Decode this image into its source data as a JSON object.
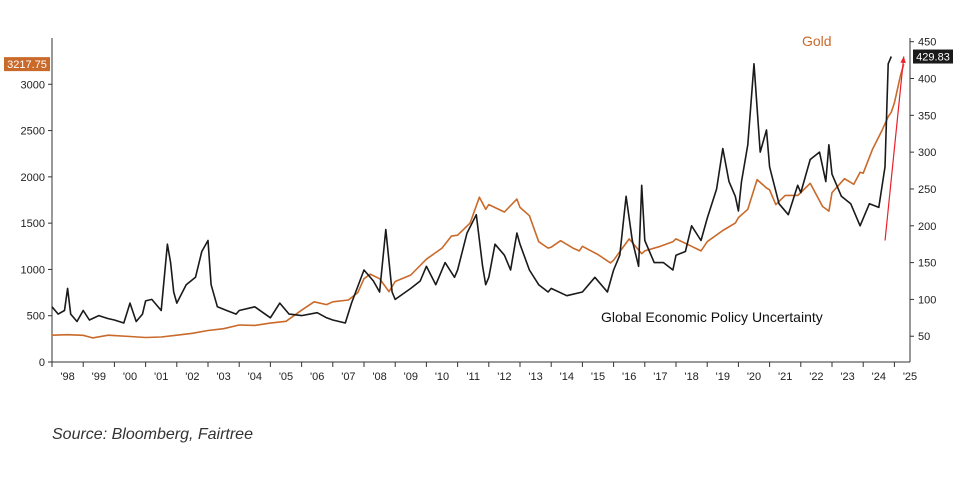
{
  "source": "Source: Bloomberg, Fairtree",
  "chart_data": {
    "type": "line",
    "title": "",
    "x_tick_labels": [
      "'98",
      "'99",
      "'00",
      "'01",
      "'02",
      "'03",
      "'04",
      "'05",
      "'06",
      "'07",
      "'08",
      "'09",
      "'10",
      "'11",
      "'12",
      "'13",
      "'14",
      "'15",
      "'16",
      "'17",
      "'18",
      "'19",
      "'20",
      "'21",
      "'22",
      "'23",
      "'24",
      "'25"
    ],
    "x_range": [
      1998,
      2025.5
    ],
    "left_axis": {
      "ticks": [
        0,
        500,
        1000,
        1500,
        2000,
        2500,
        3000
      ],
      "ylim": [
        0,
        3500
      ]
    },
    "right_axis": {
      "ticks": [
        50,
        100,
        150,
        200,
        250,
        300,
        350,
        400,
        450
      ],
      "ylim": [
        15,
        455
      ]
    },
    "grid": false,
    "colors": {
      "gold": "#C96A2B",
      "epu": "#1a1a1a",
      "arrow": "#E8202A",
      "left_badge": "#C96A2B",
      "right_badge": "#1a1a1a"
    },
    "series": [
      {
        "name": "Gold",
        "axis": "left",
        "last_value_label": "3217.75",
        "points": [
          [
            1998.0,
            290
          ],
          [
            1998.5,
            295
          ],
          [
            1999.0,
            288
          ],
          [
            1999.3,
            260
          ],
          [
            1999.8,
            290
          ],
          [
            2000.0,
            285
          ],
          [
            2000.5,
            275
          ],
          [
            2001.0,
            265
          ],
          [
            2001.5,
            270
          ],
          [
            2002.0,
            290
          ],
          [
            2002.5,
            310
          ],
          [
            2003.0,
            340
          ],
          [
            2003.5,
            360
          ],
          [
            2004.0,
            400
          ],
          [
            2004.5,
            395
          ],
          [
            2005.0,
            420
          ],
          [
            2005.5,
            440
          ],
          [
            2006.0,
            560
          ],
          [
            2006.4,
            650
          ],
          [
            2006.8,
            620
          ],
          [
            2007.0,
            650
          ],
          [
            2007.5,
            670
          ],
          [
            2007.8,
            750
          ],
          [
            2008.0,
            900
          ],
          [
            2008.2,
            950
          ],
          [
            2008.5,
            900
          ],
          [
            2008.8,
            760
          ],
          [
            2009.0,
            870
          ],
          [
            2009.5,
            940
          ],
          [
            2010.0,
            1110
          ],
          [
            2010.5,
            1230
          ],
          [
            2010.8,
            1360
          ],
          [
            2011.0,
            1370
          ],
          [
            2011.4,
            1500
          ],
          [
            2011.7,
            1780
          ],
          [
            2011.9,
            1650
          ],
          [
            2012.0,
            1700
          ],
          [
            2012.5,
            1620
          ],
          [
            2012.9,
            1760
          ],
          [
            2013.0,
            1670
          ],
          [
            2013.3,
            1580
          ],
          [
            2013.6,
            1300
          ],
          [
            2013.9,
            1230
          ],
          [
            2014.0,
            1240
          ],
          [
            2014.3,
            1310
          ],
          [
            2014.7,
            1230
          ],
          [
            2014.9,
            1200
          ],
          [
            2015.0,
            1250
          ],
          [
            2015.5,
            1160
          ],
          [
            2015.9,
            1070
          ],
          [
            2016.0,
            1100
          ],
          [
            2016.5,
            1330
          ],
          [
            2016.9,
            1170
          ],
          [
            2017.0,
            1200
          ],
          [
            2017.5,
            1250
          ],
          [
            2017.9,
            1300
          ],
          [
            2018.0,
            1330
          ],
          [
            2018.5,
            1250
          ],
          [
            2018.8,
            1200
          ],
          [
            2019.0,
            1300
          ],
          [
            2019.5,
            1420
          ],
          [
            2019.9,
            1500
          ],
          [
            2020.0,
            1560
          ],
          [
            2020.3,
            1650
          ],
          [
            2020.6,
            1970
          ],
          [
            2020.9,
            1880
          ],
          [
            2021.0,
            1860
          ],
          [
            2021.2,
            1700
          ],
          [
            2021.5,
            1800
          ],
          [
            2021.9,
            1800
          ],
          [
            2022.0,
            1830
          ],
          [
            2022.3,
            1930
          ],
          [
            2022.7,
            1680
          ],
          [
            2022.9,
            1630
          ],
          [
            2023.0,
            1830
          ],
          [
            2023.4,
            1980
          ],
          [
            2023.7,
            1920
          ],
          [
            2023.9,
            2050
          ],
          [
            2024.0,
            2040
          ],
          [
            2024.3,
            2300
          ],
          [
            2024.6,
            2500
          ],
          [
            2024.8,
            2650
          ],
          [
            2024.9,
            2700
          ],
          [
            2025.0,
            2800
          ],
          [
            2025.1,
            2950
          ],
          [
            2025.2,
            3100
          ],
          [
            2025.3,
            3217.75
          ]
        ]
      },
      {
        "name": "Global Economic Policy Uncertainty",
        "axis": "right",
        "last_value_label": "429.83",
        "points": [
          [
            1998.0,
            90
          ],
          [
            1998.2,
            80
          ],
          [
            1998.4,
            85
          ],
          [
            1998.5,
            115
          ],
          [
            1998.6,
            80
          ],
          [
            1998.8,
            70
          ],
          [
            1999.0,
            85
          ],
          [
            1999.2,
            72
          ],
          [
            1999.5,
            78
          ],
          [
            1999.8,
            74
          ],
          [
            2000.0,
            72
          ],
          [
            2000.3,
            68
          ],
          [
            2000.5,
            95
          ],
          [
            2000.7,
            70
          ],
          [
            2000.9,
            80
          ],
          [
            2001.0,
            98
          ],
          [
            2001.2,
            100
          ],
          [
            2001.5,
            85
          ],
          [
            2001.7,
            175
          ],
          [
            2001.8,
            150
          ],
          [
            2001.9,
            110
          ],
          [
            2002.0,
            95
          ],
          [
            2002.3,
            120
          ],
          [
            2002.6,
            130
          ],
          [
            2002.8,
            165
          ],
          [
            2003.0,
            180
          ],
          [
            2003.1,
            120
          ],
          [
            2003.3,
            90
          ],
          [
            2003.6,
            85
          ],
          [
            2003.9,
            80
          ],
          [
            2004.0,
            85
          ],
          [
            2004.5,
            90
          ],
          [
            2005.0,
            75
          ],
          [
            2005.3,
            95
          ],
          [
            2005.6,
            80
          ],
          [
            2006.0,
            78
          ],
          [
            2006.5,
            82
          ],
          [
            2006.8,
            75
          ],
          [
            2007.0,
            72
          ],
          [
            2007.4,
            68
          ],
          [
            2007.6,
            95
          ],
          [
            2008.0,
            140
          ],
          [
            2008.3,
            125
          ],
          [
            2008.5,
            110
          ],
          [
            2008.7,
            195
          ],
          [
            2008.9,
            110
          ],
          [
            2009.0,
            100
          ],
          [
            2009.5,
            115
          ],
          [
            2009.8,
            125
          ],
          [
            2010.0,
            145
          ],
          [
            2010.3,
            120
          ],
          [
            2010.6,
            150
          ],
          [
            2010.9,
            130
          ],
          [
            2011.0,
            140
          ],
          [
            2011.3,
            190
          ],
          [
            2011.6,
            215
          ],
          [
            2011.8,
            145
          ],
          [
            2011.9,
            120
          ],
          [
            2012.0,
            130
          ],
          [
            2012.2,
            175
          ],
          [
            2012.5,
            160
          ],
          [
            2012.7,
            140
          ],
          [
            2012.9,
            190
          ],
          [
            2013.0,
            175
          ],
          [
            2013.3,
            140
          ],
          [
            2013.6,
            120
          ],
          [
            2013.9,
            110
          ],
          [
            2014.0,
            115
          ],
          [
            2014.5,
            105
          ],
          [
            2015.0,
            110
          ],
          [
            2015.4,
            130
          ],
          [
            2015.8,
            110
          ],
          [
            2016.0,
            140
          ],
          [
            2016.2,
            160
          ],
          [
            2016.4,
            240
          ],
          [
            2016.6,
            180
          ],
          [
            2016.8,
            145
          ],
          [
            2016.9,
            255
          ],
          [
            2017.0,
            180
          ],
          [
            2017.3,
            150
          ],
          [
            2017.6,
            150
          ],
          [
            2017.9,
            140
          ],
          [
            2018.0,
            160
          ],
          [
            2018.3,
            165
          ],
          [
            2018.5,
            200
          ],
          [
            2018.8,
            180
          ],
          [
            2019.0,
            210
          ],
          [
            2019.3,
            250
          ],
          [
            2019.5,
            305
          ],
          [
            2019.7,
            260
          ],
          [
            2019.9,
            240
          ],
          [
            2020.0,
            220
          ],
          [
            2020.1,
            260
          ],
          [
            2020.3,
            310
          ],
          [
            2020.5,
            420
          ],
          [
            2020.7,
            300
          ],
          [
            2020.9,
            330
          ],
          [
            2021.0,
            280
          ],
          [
            2021.3,
            230
          ],
          [
            2021.6,
            215
          ],
          [
            2021.9,
            255
          ],
          [
            2022.0,
            245
          ],
          [
            2022.3,
            290
          ],
          [
            2022.6,
            300
          ],
          [
            2022.8,
            260
          ],
          [
            2022.9,
            310
          ],
          [
            2023.0,
            270
          ],
          [
            2023.3,
            240
          ],
          [
            2023.6,
            230
          ],
          [
            2023.9,
            200
          ],
          [
            2024.0,
            210
          ],
          [
            2024.2,
            230
          ],
          [
            2024.5,
            225
          ],
          [
            2024.7,
            280
          ],
          [
            2024.8,
            420
          ],
          [
            2024.9,
            429.83
          ]
        ]
      }
    ],
    "annotations": [
      {
        "type": "arrow",
        "from": [
          2024.7,
          180
        ],
        "to": [
          2025.3,
          430
        ],
        "axis": "right"
      }
    ]
  }
}
